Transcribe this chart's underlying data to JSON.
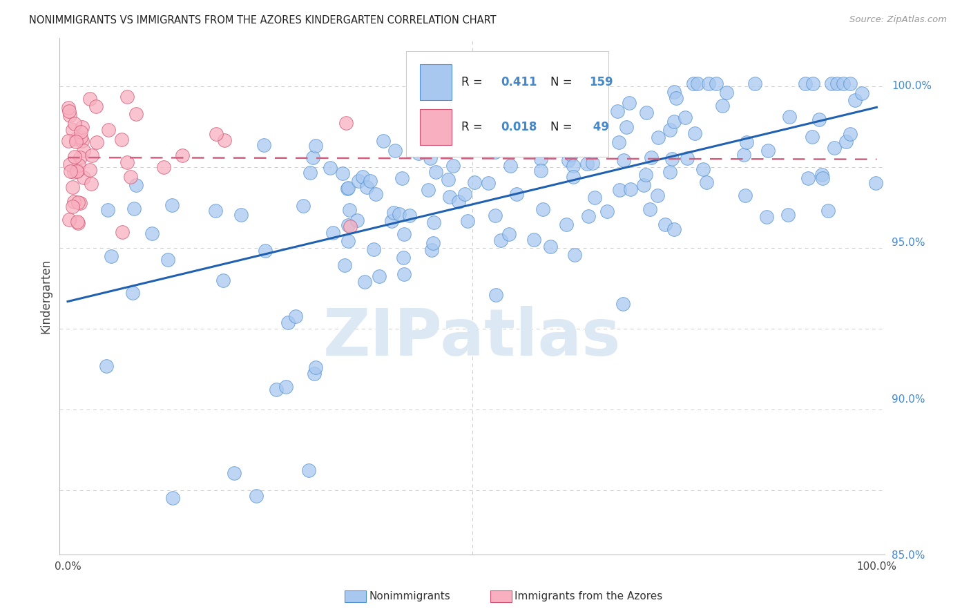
{
  "title": "NONIMMIGRANTS VS IMMIGRANTS FROM THE AZORES KINDERGARTEN CORRELATION CHART",
  "source": "Source: ZipAtlas.com",
  "ylabel": "Kindergarten",
  "blue_color": "#a8c8f0",
  "blue_edge": "#5090d0",
  "pink_color": "#f8b0c0",
  "pink_edge": "#d05070",
  "trend_blue": "#2060b0",
  "trend_pink": "#d06080",
  "right_axis_color": "#4488cc",
  "watermark_color": "#dde8f5",
  "grid_color": "#cccccc",
  "background_color": "#ffffff",
  "legend_r1_color": "#222222",
  "legend_n1_color": "#4488cc",
  "legend_r2_color": "#222222",
  "legend_n2_color": "#4488cc"
}
